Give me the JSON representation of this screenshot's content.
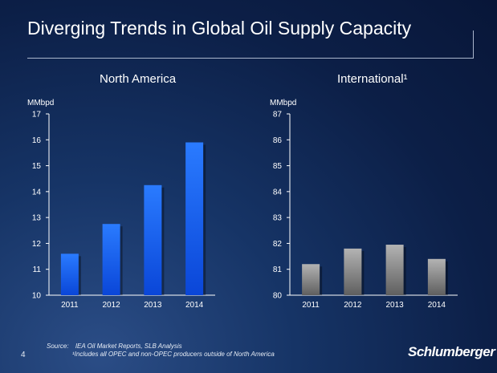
{
  "slide": {
    "title": "Diverging Trends in Global Oil Supply Capacity",
    "page_number": "4",
    "logo": "Schlumberger",
    "source_label": "Source:",
    "source_text": "IEA Oil Market Reports, SLB Analysis",
    "footnote": "¹Includes all OPEC and non-OPEC producers outside of North America"
  },
  "chart_data": [
    {
      "type": "bar",
      "title": "North America",
      "ylabel": "MMbpd",
      "categories": [
        "2011",
        "2012",
        "2013",
        "2014"
      ],
      "values": [
        11.6,
        12.75,
        14.25,
        15.9
      ],
      "ylim": [
        10,
        17
      ],
      "yticks": [
        "10",
        "11",
        "12",
        "13",
        "14",
        "15",
        "16",
        "17"
      ],
      "color": "#1f6bff"
    },
    {
      "type": "bar",
      "title": "International¹",
      "ylabel": "MMbpd",
      "categories": [
        "2011",
        "2012",
        "2013",
        "2014"
      ],
      "values": [
        81.2,
        81.8,
        81.95,
        81.4
      ],
      "ylim": [
        80,
        87
      ],
      "yticks": [
        "80",
        "81",
        "82",
        "83",
        "84",
        "85",
        "86",
        "87"
      ],
      "color": "#9a9a9a"
    }
  ]
}
